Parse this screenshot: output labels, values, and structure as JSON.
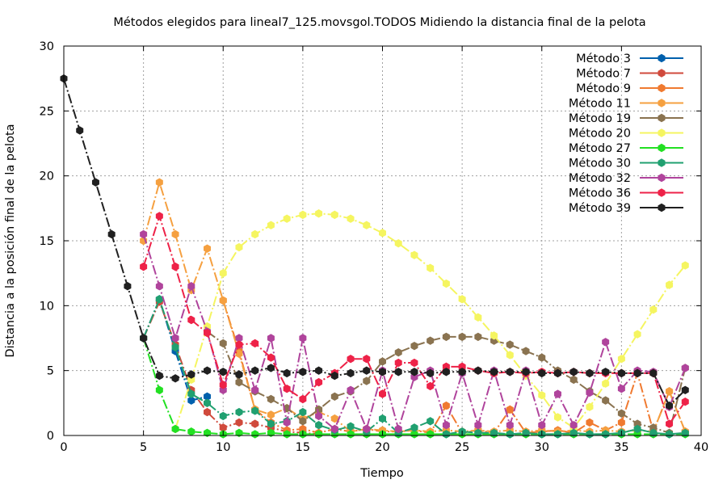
{
  "chart_data": {
    "type": "line",
    "title": "Métodos elegidos para lineal7_125.movsgol.TODOS Midiendo la distancia final de la pelota",
    "xlabel": "Tiempo",
    "ylabel": "Distancia a la posición final de la pelota",
    "xlim": [
      0,
      40
    ],
    "ylim": [
      0,
      30
    ],
    "xticks": [
      0,
      5,
      10,
      15,
      20,
      25,
      30,
      35,
      40
    ],
    "yticks": [
      0,
      5,
      10,
      15,
      20,
      25,
      30
    ],
    "grid": true,
    "legend_position": "top-right",
    "series": [
      {
        "name": "Método 3",
        "color": "#0060ad",
        "marker": "hexagon",
        "x": [
          5,
          6,
          7,
          8,
          9
        ],
        "y": [
          7.5,
          10.5,
          6.5,
          2.7,
          3.0
        ]
      },
      {
        "name": "Método 7",
        "color": "#d04a3c",
        "marker": "hexagon",
        "x": [
          5,
          6,
          7,
          8,
          9,
          10,
          11,
          12,
          13,
          14,
          15,
          16
        ],
        "y": [
          7.5,
          10.3,
          7.0,
          3.5,
          1.8,
          0.6,
          1.0,
          0.9,
          0.6,
          0.3,
          0.2,
          0.1
        ]
      },
      {
        "name": "Método 9",
        "color": "#f07a30",
        "marker": "hexagon",
        "x": [
          10,
          11,
          12,
          13,
          14,
          15,
          16,
          17,
          18,
          19,
          20,
          21,
          22,
          23,
          24,
          25,
          26,
          27,
          28,
          29,
          30,
          31,
          32,
          33,
          34,
          35,
          36,
          37,
          38,
          39
        ],
        "y": [
          10.4,
          6.5,
          2.0,
          1.0,
          0.4,
          0.5,
          0.2,
          0.5,
          0.3,
          0.5,
          0.3,
          0.3,
          0.4,
          0.2,
          2.3,
          0.2,
          0.4,
          0.2,
          2.0,
          0.2,
          0.3,
          0.4,
          0.2,
          1.0,
          0.4,
          1.0,
          4.8,
          0.3,
          3.4,
          0.3
        ]
      },
      {
        "name": "Método 11",
        "color": "#f5a040",
        "marker": "hexagon",
        "x": [
          5,
          6,
          7,
          8,
          9,
          10,
          11,
          12,
          13,
          14,
          15,
          16,
          17,
          18,
          19,
          20,
          21,
          22,
          23,
          24,
          25,
          26,
          27,
          28,
          29,
          30,
          31,
          32,
          33,
          34,
          35,
          36,
          37,
          38,
          39
        ],
        "y": [
          15.0,
          19.5,
          15.5,
          11.2,
          14.4,
          10.4,
          6.3,
          2.0,
          1.6,
          2.1,
          1.3,
          1.8,
          1.3,
          0.3,
          0.5,
          0.4,
          0.3,
          0.4,
          0.3,
          0.4,
          0.3,
          0.4,
          0.3,
          0.4,
          0.3,
          0.4,
          0.3,
          0.4,
          0.3,
          0.4,
          0.3,
          0.4,
          0.3,
          3.4,
          0.3
        ]
      },
      {
        "name": "Método 19",
        "color": "#8a7350",
        "marker": "hexagon",
        "x": [
          9,
          10,
          11,
          12,
          13,
          14,
          15,
          16,
          17,
          18,
          19,
          20,
          21,
          22,
          23,
          24,
          25,
          26,
          27,
          28,
          29,
          30,
          31,
          32,
          33,
          34,
          35,
          36,
          37,
          38,
          39
        ],
        "y": [
          8.0,
          7.1,
          4.1,
          3.4,
          2.8,
          2.1,
          1.1,
          2.0,
          3.0,
          3.4,
          4.2,
          5.7,
          6.4,
          6.9,
          7.3,
          7.6,
          7.6,
          7.6,
          7.3,
          7.0,
          6.5,
          6.0,
          5.0,
          4.3,
          3.4,
          2.7,
          1.7,
          0.9,
          0.6,
          0.2,
          5.2
        ]
      },
      {
        "name": "Método 20",
        "color": "#f5f560",
        "marker": "hexagon",
        "x": [
          7,
          8,
          9,
          10,
          11,
          12,
          13,
          14,
          15,
          16,
          17,
          18,
          19,
          20,
          21,
          22,
          23,
          24,
          25,
          26,
          27,
          28,
          29,
          30,
          31,
          32,
          33,
          34,
          35,
          36,
          37,
          38,
          39
        ],
        "y": [
          0.5,
          4.3,
          8.4,
          12.5,
          14.5,
          15.5,
          16.2,
          16.7,
          17.0,
          17.1,
          17.0,
          16.7,
          16.2,
          15.6,
          14.8,
          13.9,
          12.9,
          11.7,
          10.5,
          9.1,
          7.7,
          6.2,
          4.6,
          3.1,
          1.4,
          0.6,
          2.2,
          4.0,
          5.9,
          7.8,
          9.7,
          11.6,
          13.1
        ]
      },
      {
        "name": "Método 27",
        "color": "#22e022",
        "marker": "hexagon",
        "x": [
          5,
          6,
          7,
          8,
          9,
          10,
          11,
          12,
          13,
          14,
          15,
          16,
          17,
          18,
          19,
          20,
          21,
          22,
          23,
          24,
          25,
          26,
          27,
          28,
          29,
          30,
          31,
          32,
          33,
          34,
          35,
          36,
          37,
          38,
          39
        ],
        "y": [
          7.5,
          3.5,
          0.5,
          0.3,
          0.2,
          0.1,
          0.2,
          0.1,
          0.2,
          0.1,
          0.1,
          0.1,
          0.1,
          0.1,
          0.1,
          0.1,
          0.1,
          0.1,
          0.1,
          0.1,
          0.1,
          0.1,
          0.1,
          0.1,
          0.1,
          0.1,
          0.1,
          0.1,
          0.1,
          0.1,
          0.1,
          0.1,
          0.1,
          0.1,
          0.1
        ]
      },
      {
        "name": "Método 30",
        "color": "#20a070",
        "marker": "hexagon",
        "x": [
          5,
          6,
          7,
          8,
          9,
          10,
          11,
          12,
          13,
          14,
          15,
          16,
          17,
          18,
          19,
          20,
          21,
          22,
          23,
          24,
          25,
          26,
          27,
          28,
          29,
          30,
          31,
          32,
          33,
          34,
          35,
          36,
          37,
          38,
          39
        ],
        "y": [
          7.5,
          10.5,
          6.8,
          3.2,
          2.5,
          1.5,
          1.8,
          1.9,
          0.9,
          1.1,
          1.8,
          0.8,
          0.4,
          0.7,
          0.3,
          1.3,
          0.2,
          0.6,
          1.1,
          0.1,
          0.3,
          0.2,
          0.2,
          0.1,
          0.2,
          0.1,
          0.1,
          0.2,
          0.1,
          0.1,
          0.2,
          0.5,
          0.2,
          0.1,
          0.2
        ]
      },
      {
        "name": "Método 32",
        "color": "#b0449c",
        "marker": "hexagon",
        "x": [
          5,
          6,
          7,
          8,
          9,
          10,
          11,
          12,
          13,
          14,
          15,
          16,
          17,
          18,
          19,
          20,
          21,
          22,
          23,
          24,
          25,
          26,
          27,
          28,
          29,
          30,
          31,
          32,
          33,
          34,
          35,
          36,
          37,
          38,
          39
        ],
        "y": [
          15.5,
          11.5,
          7.5,
          11.5,
          8.0,
          3.5,
          7.5,
          3.5,
          7.5,
          1.0,
          7.5,
          1.5,
          0.5,
          3.5,
          0.5,
          5.0,
          0.5,
          4.5,
          5.0,
          0.8,
          4.8,
          0.8,
          5.0,
          0.8,
          5.0,
          0.8,
          3.2,
          0.8,
          3.3,
          7.2,
          3.6,
          5.0,
          4.9,
          2.2,
          5.2
        ]
      },
      {
        "name": "Método 36",
        "color": "#ee2248",
        "marker": "hexagon",
        "x": [
          5,
          6,
          7,
          8,
          9,
          10,
          11,
          12,
          13,
          14,
          15,
          16,
          17,
          18,
          19,
          20,
          21,
          22,
          23,
          24,
          25,
          26,
          27,
          28,
          29,
          30,
          31,
          32,
          33,
          34,
          35,
          36,
          37,
          38,
          39
        ],
        "y": [
          13.0,
          16.9,
          13.0,
          8.9,
          7.9,
          3.9,
          7.0,
          7.1,
          6.0,
          3.6,
          2.8,
          4.1,
          4.8,
          5.9,
          5.9,
          3.2,
          5.6,
          5.6,
          3.8,
          5.3,
          5.3,
          5.0,
          4.8,
          4.9,
          4.8,
          4.9,
          4.8,
          4.9,
          4.8,
          4.8,
          4.8,
          4.8,
          4.8,
          0.9,
          2.6
        ]
      },
      {
        "name": "Método 39",
        "color": "#202020",
        "marker": "hexagon",
        "x": [
          0,
          1,
          2,
          3,
          4,
          5,
          6,
          7,
          8,
          9,
          10,
          11,
          12,
          13,
          14,
          15,
          16,
          17,
          18,
          19,
          20,
          21,
          22,
          23,
          24,
          25,
          26,
          27,
          28,
          29,
          30,
          31,
          32,
          33,
          34,
          35,
          36,
          37,
          38,
          39
        ],
        "y": [
          27.5,
          23.5,
          19.5,
          15.5,
          11.5,
          7.5,
          4.6,
          4.4,
          4.7,
          5.0,
          4.9,
          4.7,
          5.0,
          5.2,
          4.8,
          4.9,
          5.0,
          4.6,
          4.8,
          5.0,
          4.9,
          4.9,
          4.9,
          4.8,
          4.9,
          4.9,
          5.0,
          4.9,
          4.9,
          4.9,
          4.8,
          4.8,
          4.9,
          4.8,
          4.9,
          4.8,
          4.8,
          4.8,
          2.3,
          3.5
        ]
      }
    ]
  }
}
